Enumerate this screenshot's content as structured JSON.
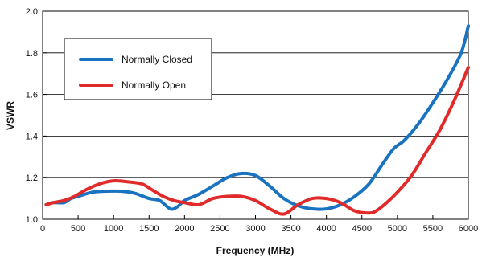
{
  "chart_data": {
    "type": "line",
    "xlabel": "Frequency (MHz)",
    "ylabel": "VSWR",
    "xlim": [
      0,
      6000
    ],
    "ylim": [
      1.0,
      2.0
    ],
    "x_ticks": [
      "0",
      "500",
      "1000",
      "1500",
      "2000",
      "2500",
      "3000",
      "3500",
      "4000",
      "4500",
      "5000",
      "5500",
      "6000"
    ],
    "y_ticks": [
      "1.0",
      "1.2",
      "1.4",
      "1.6",
      "1.8",
      "2.0"
    ],
    "grid": "horizontal",
    "legend_position": "top-left",
    "series": [
      {
        "name": "Normally Closed",
        "color": "#1a73c0",
        "x": [
          50,
          150,
          300,
          400,
          500,
          700,
          900,
          1100,
          1300,
          1500,
          1650,
          1800,
          1900,
          2000,
          2200,
          2400,
          2600,
          2800,
          3000,
          3200,
          3400,
          3600,
          3800,
          4000,
          4200,
          4400,
          4600,
          4800,
          4950,
          5100,
          5300,
          5500,
          5700,
          5900,
          6000
        ],
        "values": [
          1.07,
          1.08,
          1.08,
          1.1,
          1.11,
          1.13,
          1.135,
          1.135,
          1.125,
          1.1,
          1.09,
          1.05,
          1.06,
          1.09,
          1.12,
          1.16,
          1.2,
          1.22,
          1.21,
          1.16,
          1.1,
          1.065,
          1.05,
          1.05,
          1.07,
          1.11,
          1.17,
          1.27,
          1.34,
          1.38,
          1.46,
          1.56,
          1.67,
          1.8,
          1.93
        ]
      },
      {
        "name": "Normally Open",
        "color": "#e12a2a",
        "x": [
          50,
          150,
          300,
          450,
          600,
          800,
          1000,
          1200,
          1400,
          1550,
          1700,
          1850,
          2000,
          2200,
          2400,
          2600,
          2800,
          3000,
          3200,
          3400,
          3600,
          3800,
          4000,
          4200,
          4400,
          4600,
          4700,
          4850,
          5000,
          5200,
          5400,
          5600,
          5800,
          6000
        ],
        "values": [
          1.07,
          1.08,
          1.09,
          1.11,
          1.14,
          1.17,
          1.185,
          1.18,
          1.17,
          1.14,
          1.11,
          1.09,
          1.08,
          1.07,
          1.1,
          1.11,
          1.11,
          1.09,
          1.05,
          1.025,
          1.07,
          1.1,
          1.1,
          1.08,
          1.04,
          1.03,
          1.04,
          1.08,
          1.13,
          1.21,
          1.32,
          1.43,
          1.57,
          1.73
        ]
      }
    ]
  }
}
